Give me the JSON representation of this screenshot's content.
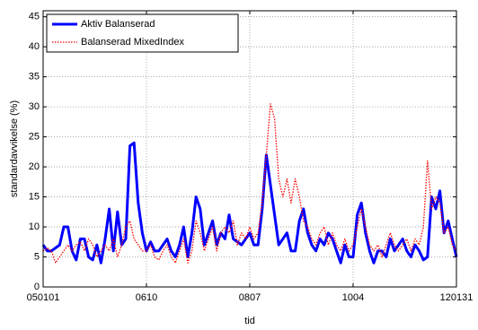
{
  "chart_data": {
    "type": "line",
    "xlabel": "tid",
    "ylabel": "standardavvikelse (%)",
    "x": [
      0,
      1,
      2,
      3,
      4,
      5,
      6,
      7,
      8,
      9,
      10,
      11,
      12,
      13,
      14,
      15,
      16,
      17,
      18,
      19,
      20,
      21,
      22,
      23,
      24,
      25,
      26,
      27,
      28,
      29,
      30,
      31,
      32,
      33,
      34,
      35,
      36,
      37,
      38,
      39,
      40,
      41,
      42,
      43,
      44,
      45,
      46,
      47,
      48,
      49,
      50,
      51,
      52,
      53,
      54,
      55,
      56,
      57,
      58,
      59,
      60,
      61,
      62,
      63,
      64,
      65,
      66,
      67,
      68,
      69,
      70,
      71,
      72,
      73,
      74,
      75,
      76,
      77,
      78,
      79,
      80,
      81,
      82,
      83,
      84,
      85,
      86,
      87,
      88,
      89,
      90,
      91,
      92,
      93,
      94,
      95,
      96,
      97,
      98,
      99,
      100
    ],
    "series": [
      {
        "name": "Aktiv Balanserad",
        "color": "#0000ff",
        "style": "solid",
        "values": [
          7,
          6,
          6,
          6.5,
          7,
          10,
          10,
          6,
          4.5,
          8,
          8,
          5,
          4.5,
          7,
          4,
          8,
          13,
          6,
          12.5,
          7,
          8,
          23.5,
          24,
          14,
          9,
          6,
          7.5,
          6,
          6,
          7,
          8,
          6,
          5,
          7,
          10,
          5,
          9,
          15,
          13,
          7,
          9,
          11,
          7,
          9,
          8,
          12,
          8,
          7.5,
          7,
          8,
          9,
          7,
          7,
          13,
          22,
          17,
          12,
          7,
          8,
          9,
          6,
          6,
          11,
          13,
          9,
          7,
          6,
          8,
          7,
          9,
          8,
          6,
          4,
          7,
          5,
          5,
          12,
          14,
          9,
          6,
          4,
          6,
          6,
          5,
          8,
          6,
          7,
          8,
          6,
          5,
          7,
          6,
          4.5,
          5,
          15,
          13,
          16,
          9,
          11,
          8,
          5
        ]
      },
      {
        "name": "Balanserad MixedIndex",
        "color": "#ff0000",
        "style": "dotted",
        "values": [
          6,
          6.5,
          6,
          4,
          5,
          6,
          7,
          6,
          7,
          7.5,
          6,
          8,
          7,
          5,
          6,
          7,
          6,
          8,
          5,
          7,
          10,
          11,
          8,
          7,
          6,
          6,
          7,
          5,
          4.5,
          6,
          7,
          5,
          4,
          6,
          8,
          4,
          6,
          11,
          9,
          6,
          8,
          10,
          6,
          9,
          10,
          9,
          11,
          7,
          9,
          8,
          10,
          8,
          9,
          14,
          22,
          30.5,
          28,
          18,
          15,
          18,
          14,
          18,
          15,
          11,
          10,
          8,
          7,
          9,
          10,
          7,
          9,
          7,
          6,
          8,
          6,
          7,
          10,
          13,
          10,
          7,
          6,
          7,
          5,
          7,
          9,
          7,
          6,
          7,
          8,
          6,
          8,
          7,
          10,
          21,
          13,
          15,
          14,
          9,
          10,
          7,
          6
        ]
      }
    ],
    "xlim": [
      0,
      100
    ],
    "xticks": [
      {
        "value": 0,
        "label": "050101"
      },
      {
        "value": 25,
        "label": "0610"
      },
      {
        "value": 50,
        "label": "0807"
      },
      {
        "value": 75,
        "label": "1004"
      },
      {
        "value": 100,
        "label": "120131"
      }
    ],
    "ylim": [
      0,
      46
    ],
    "yticks": [
      0,
      5,
      10,
      15,
      20,
      25,
      30,
      35,
      40,
      45
    ],
    "grid": true,
    "legend": "upper left"
  }
}
